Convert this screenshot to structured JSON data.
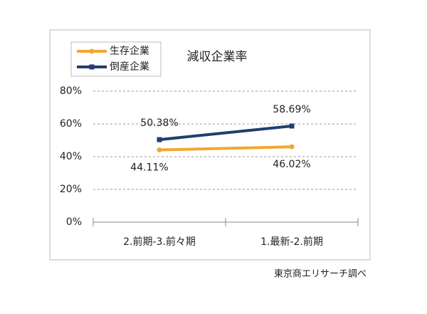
{
  "chart_data": {
    "type": "line",
    "title": "減収企業率",
    "categories": [
      "2.前期-3.前々期",
      "1.最新-2.前期"
    ],
    "series": [
      {
        "name": "生存企業",
        "color": "#f0a830",
        "values": [
          44.11,
          46.02
        ],
        "value_labels": [
          "44.11%",
          "46.02%"
        ]
      },
      {
        "name": "倒産企業",
        "color": "#1f3f6e",
        "values": [
          50.38,
          58.69
        ],
        "value_labels": [
          "50.38%",
          "58.69%"
        ]
      }
    ],
    "ylim": [
      0,
      80
    ],
    "yticks": [
      {
        "value": 0,
        "label": "0%"
      },
      {
        "value": 20,
        "label": "20%"
      },
      {
        "value": 40,
        "label": "40%"
      },
      {
        "value": 60,
        "label": "60%"
      },
      {
        "value": 80,
        "label": "80%"
      }
    ],
    "grid": true,
    "source": "東京商エリサーチ調べ"
  }
}
